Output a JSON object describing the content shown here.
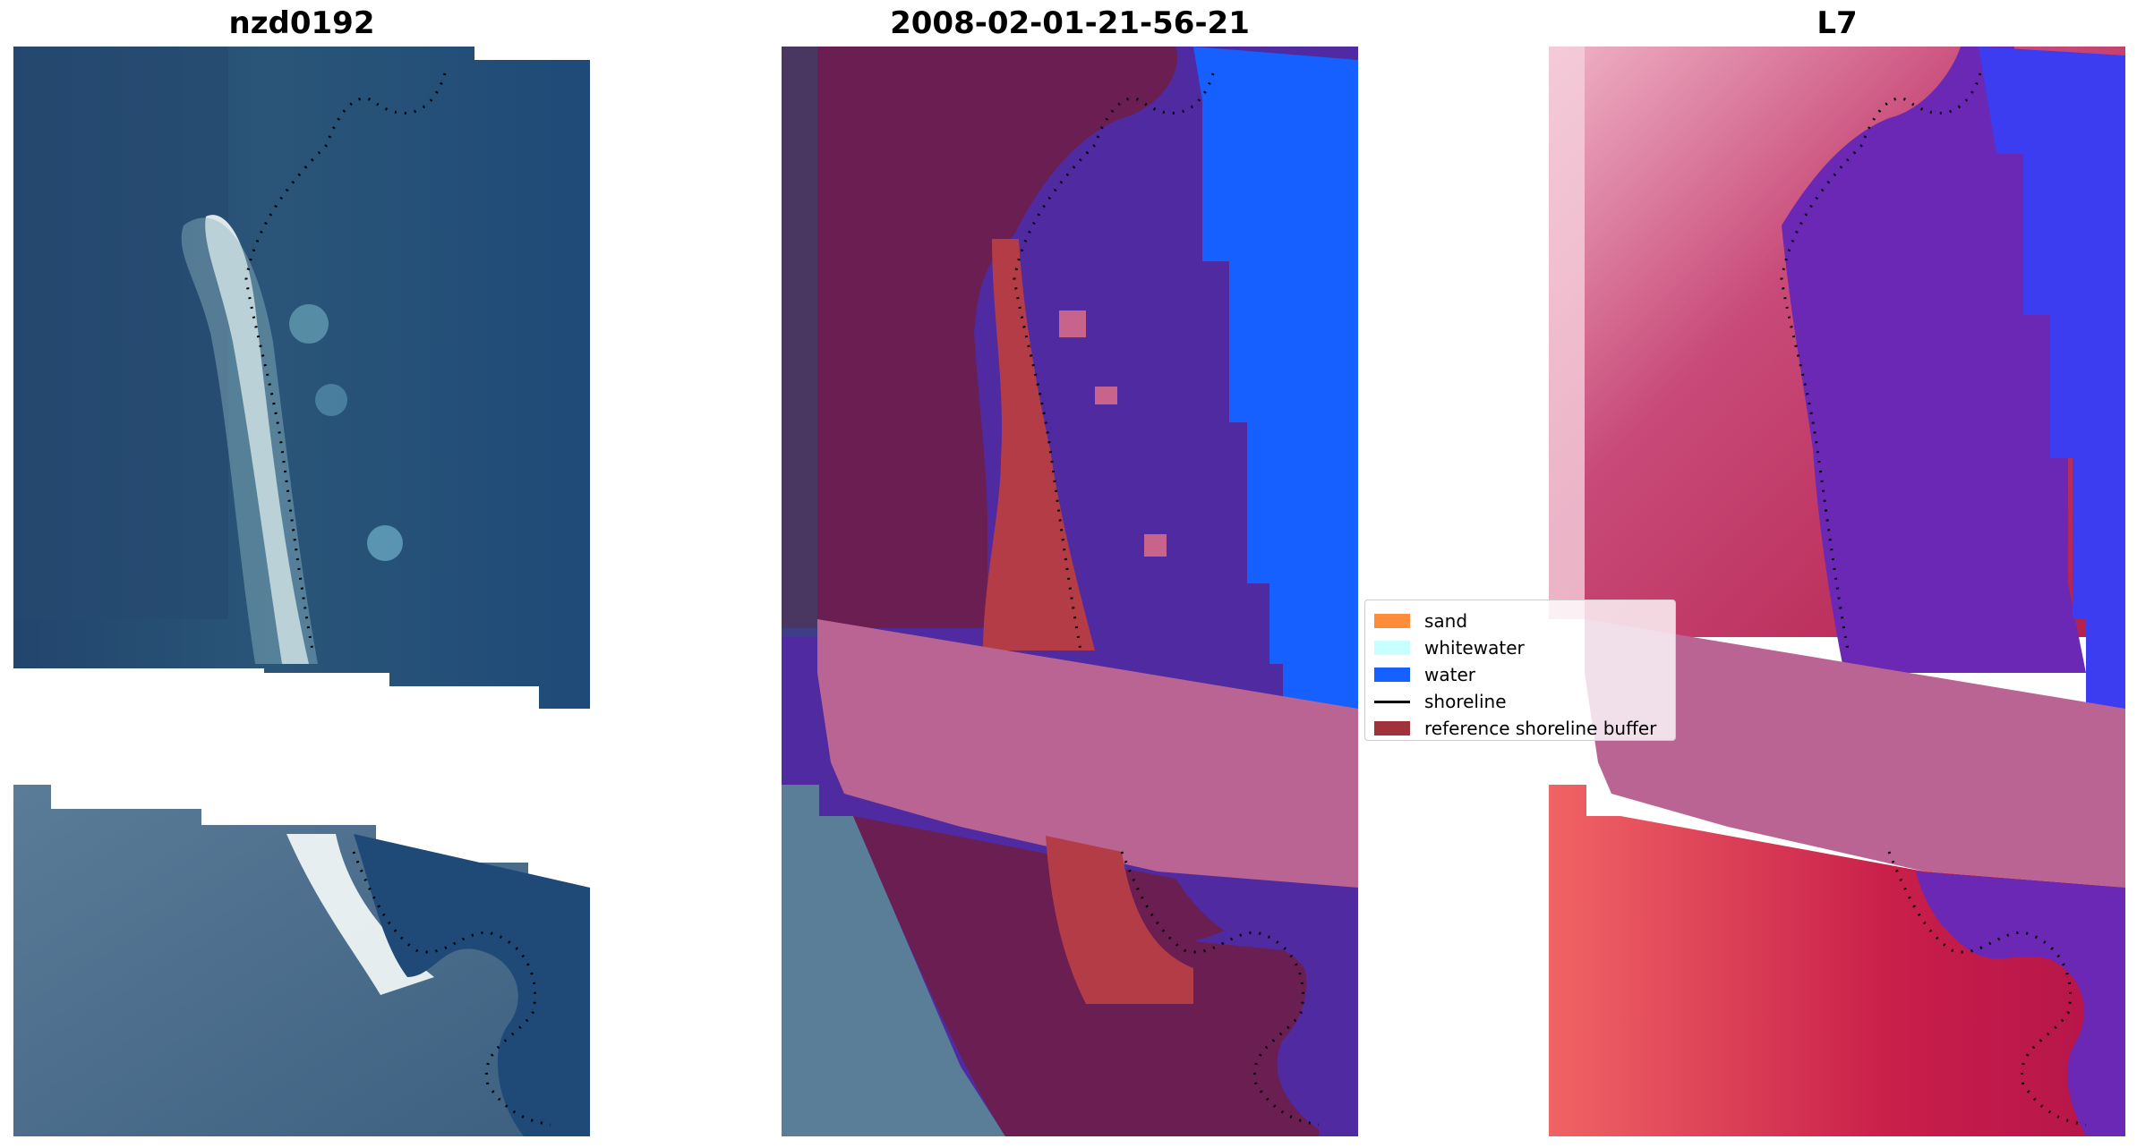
{
  "panels": [
    {
      "title": "nzd0192"
    },
    {
      "title": "2008-02-01-21-56-21"
    },
    {
      "title": "L7"
    }
  ],
  "legend": {
    "items": [
      {
        "label": "sand",
        "color": "#ff8c3a",
        "kind": "patch"
      },
      {
        "label": "whitewater",
        "color": "#c8ffff",
        "kind": "patch"
      },
      {
        "label": "water",
        "color": "#1560ff",
        "kind": "patch"
      },
      {
        "label": "shoreline",
        "color": "#000000",
        "kind": "line"
      },
      {
        "label": "reference shoreline buffer",
        "color": "#a0323c",
        "kind": "patch"
      }
    ]
  },
  "colors": {
    "rgb_water": "#1e4a78",
    "rgb_land": "#4a6a8a",
    "class_land": "#6a1e52",
    "class_water": "#502aa0",
    "class_ocean": "#1560ff",
    "class_sand": "#b43c46",
    "buffer_band": "#ba6494",
    "mndwi_land": "#c83c6a",
    "mndwi_water": "#6a28b4",
    "mndwi_ocean": "#3c3cf0"
  }
}
